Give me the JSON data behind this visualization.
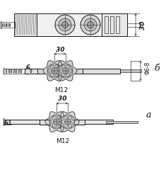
{
  "bg_color": "#ffffff",
  "line_color": "#1a1a1a",
  "fig_width": 2.35,
  "fig_height": 2.51,
  "label_a": "a",
  "label_b": "б",
  "dim_30": "30",
  "dim_6": "6",
  "dim_M12": "M12",
  "dim_M12b": "M12",
  "dim_phi": "Φ6-8",
  "dim_30b": "30"
}
